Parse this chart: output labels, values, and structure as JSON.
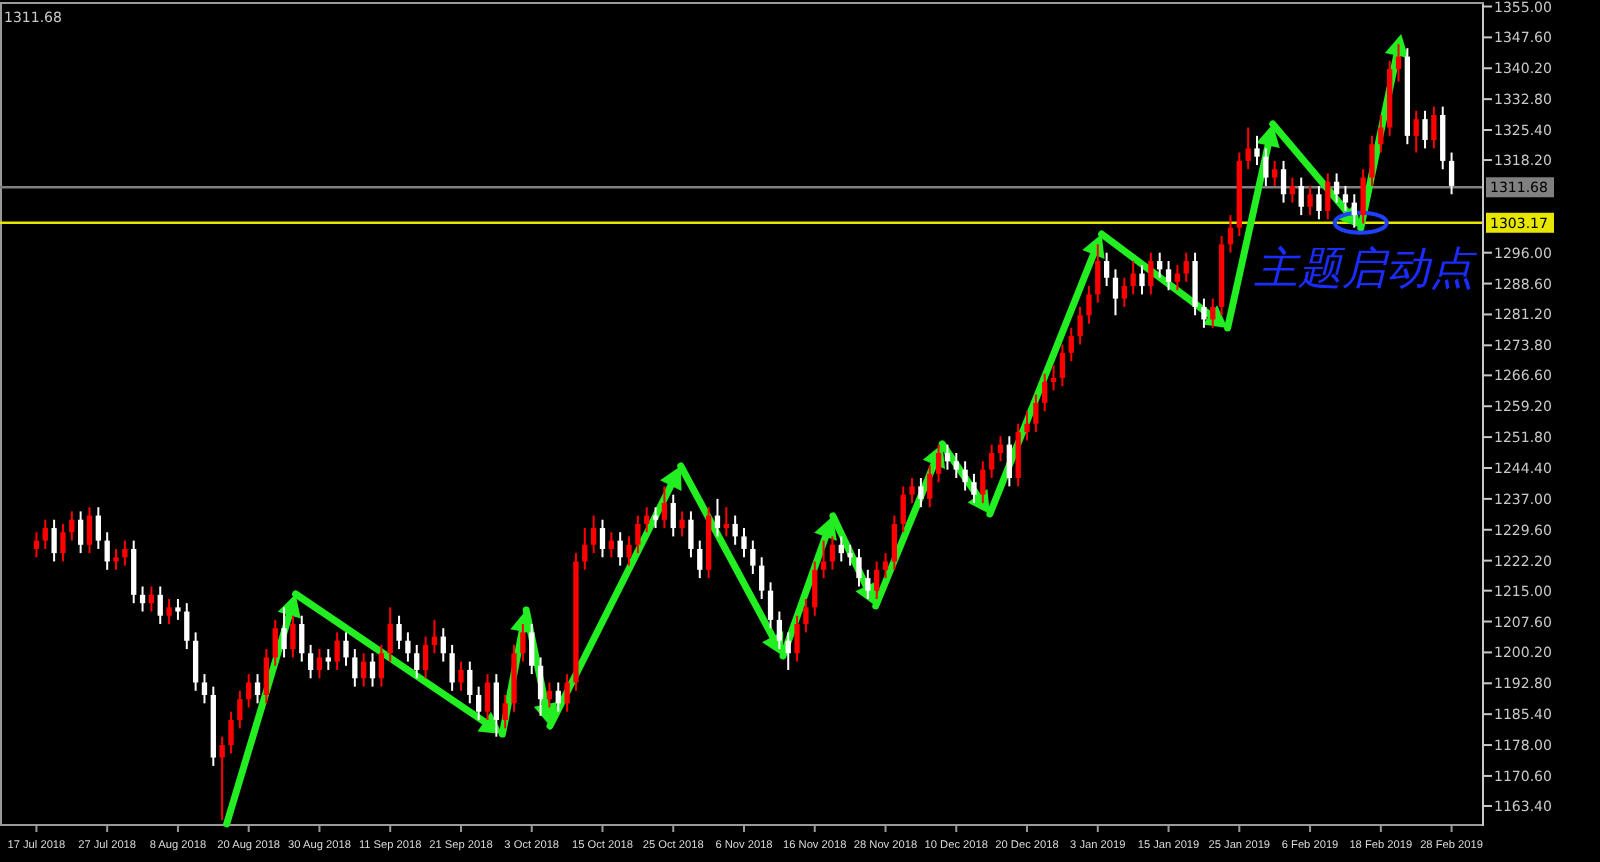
{
  "chart_data": {
    "type": "candlestick",
    "categories": [
      "17 Jul 2018",
      null,
      null,
      null,
      null,
      null,
      null,
      null,
      "27 Jul 2018",
      null,
      null,
      null,
      null,
      null,
      null,
      null,
      "8 Aug 2018",
      null,
      null,
      null,
      null,
      null,
      null,
      null,
      "20 Aug 2018",
      null,
      null,
      null,
      null,
      null,
      null,
      null,
      "30 Aug 2018",
      null,
      null,
      null,
      null,
      null,
      null,
      null,
      "11 Sep 2018",
      null,
      null,
      null,
      null,
      null,
      null,
      null,
      "21 Sep 2018",
      null,
      null,
      null,
      null,
      null,
      null,
      null,
      "3 Oct 2018",
      null,
      null,
      null,
      null,
      null,
      null,
      null,
      "15 Oct 2018",
      null,
      null,
      null,
      null,
      null,
      null,
      null,
      "25 Oct 2018",
      null,
      null,
      null,
      null,
      null,
      null,
      null,
      "6 Nov 2018",
      null,
      null,
      null,
      null,
      null,
      null,
      null,
      "16 Nov 2018",
      null,
      null,
      null,
      null,
      null,
      null,
      null,
      "28 Nov 2018",
      null,
      null,
      null,
      null,
      null,
      null,
      null,
      "10 Dec 2018",
      null,
      null,
      null,
      null,
      null,
      null,
      null,
      "20 Dec 2018",
      null,
      null,
      null,
      null,
      null,
      null,
      null,
      "3 Jan 2019",
      null,
      null,
      null,
      null,
      null,
      null,
      null,
      "15 Jan 2019",
      null,
      null,
      null,
      null,
      null,
      null,
      null,
      "25 Jan 2019",
      null,
      null,
      null,
      null,
      null,
      null,
      null,
      "6 Feb 2019",
      null,
      null,
      null,
      null,
      null,
      null,
      null,
      "18 Feb 2019",
      null,
      null,
      null,
      null,
      null,
      null,
      null,
      "28 Feb 2019"
    ],
    "ohlc": [
      [
        1225,
        1229,
        1223,
        1227
      ],
      [
        1227,
        1232,
        1225,
        1230
      ],
      [
        1230,
        1232,
        1222,
        1224
      ],
      [
        1224,
        1231,
        1222,
        1229
      ],
      [
        1229,
        1234,
        1227,
        1232
      ],
      [
        1232,
        1234,
        1224,
        1226
      ],
      [
        1226,
        1235,
        1224,
        1233
      ],
      [
        1233,
        1235,
        1225,
        1227
      ],
      [
        1227,
        1229,
        1220,
        1222
      ],
      [
        1222,
        1225,
        1220,
        1223
      ],
      [
        1223,
        1227,
        1221,
        1225
      ],
      [
        1225,
        1227,
        1212,
        1214
      ],
      [
        1214,
        1216,
        1210,
        1212
      ],
      [
        1212,
        1216,
        1210,
        1214
      ],
      [
        1214,
        1216,
        1207,
        1209
      ],
      [
        1209,
        1213,
        1207,
        1211
      ],
      [
        1211,
        1213,
        1208,
        1210
      ],
      [
        1210,
        1212,
        1201,
        1203
      ],
      [
        1203,
        1205,
        1191,
        1193
      ],
      [
        1193,
        1195,
        1188,
        1190
      ],
      [
        1190,
        1192,
        1173,
        1175
      ],
      [
        1175,
        1180,
        1160,
        1178
      ],
      [
        1178,
        1186,
        1176,
        1184
      ],
      [
        1184,
        1191,
        1182,
        1189
      ],
      [
        1189,
        1195,
        1187,
        1193
      ],
      [
        1193,
        1195,
        1188,
        1190
      ],
      [
        1190,
        1201,
        1188,
        1199
      ],
      [
        1199,
        1208,
        1197,
        1206
      ],
      [
        1206,
        1211,
        1199,
        1201
      ],
      [
        1201,
        1209,
        1199,
        1207
      ],
      [
        1207,
        1209,
        1198,
        1200
      ],
      [
        1200,
        1202,
        1194,
        1196
      ],
      [
        1196,
        1201,
        1194,
        1199
      ],
      [
        1199,
        1201,
        1196,
        1198
      ],
      [
        1198,
        1205,
        1196,
        1203
      ],
      [
        1203,
        1205,
        1197,
        1199
      ],
      [
        1199,
        1201,
        1192,
        1194
      ],
      [
        1194,
        1200,
        1192,
        1198
      ],
      [
        1198,
        1200,
        1192,
        1194
      ],
      [
        1194,
        1202,
        1192,
        1200
      ],
      [
        1200,
        1211,
        1198,
        1207
      ],
      [
        1207,
        1209,
        1201,
        1203
      ],
      [
        1203,
        1205,
        1198,
        1200
      ],
      [
        1200,
        1202,
        1194,
        1196
      ],
      [
        1196,
        1204,
        1194,
        1202
      ],
      [
        1202,
        1208,
        1200,
        1204
      ],
      [
        1204,
        1206,
        1198,
        1200
      ],
      [
        1200,
        1202,
        1191,
        1193
      ],
      [
        1193,
        1198,
        1191,
        1196
      ],
      [
        1196,
        1198,
        1188,
        1190
      ],
      [
        1190,
        1192,
        1184,
        1186
      ],
      [
        1186,
        1195,
        1184,
        1193
      ],
      [
        1193,
        1195,
        1180,
        1184
      ],
      [
        1184,
        1190,
        1182,
        1188
      ],
      [
        1188,
        1202,
        1186,
        1200
      ],
      [
        1200,
        1207,
        1198,
        1205
      ],
      [
        1205,
        1207,
        1195,
        1197
      ],
      [
        1197,
        1199,
        1185,
        1189
      ],
      [
        1189,
        1193,
        1187,
        1191
      ],
      [
        1191,
        1193,
        1186,
        1188
      ],
      [
        1188,
        1195,
        1186,
        1193
      ],
      [
        1193,
        1224,
        1191,
        1222
      ],
      [
        1222,
        1230,
        1220,
        1226
      ],
      [
        1226,
        1233,
        1224,
        1230
      ],
      [
        1230,
        1232,
        1223,
        1225
      ],
      [
        1225,
        1229,
        1223,
        1227
      ],
      [
        1227,
        1229,
        1221,
        1223
      ],
      [
        1223,
        1228,
        1221,
        1226
      ],
      [
        1226,
        1233,
        1224,
        1231
      ],
      [
        1231,
        1235,
        1229,
        1233
      ],
      [
        1233,
        1235,
        1230,
        1232
      ],
      [
        1232,
        1240,
        1230,
        1236
      ],
      [
        1236,
        1238,
        1228,
        1230
      ],
      [
        1230,
        1234,
        1228,
        1232
      ],
      [
        1232,
        1234,
        1223,
        1225
      ],
      [
        1225,
        1227,
        1218,
        1220
      ],
      [
        1220,
        1235,
        1218,
        1233
      ],
      [
        1233,
        1237,
        1228,
        1230
      ],
      [
        1230,
        1235,
        1228,
        1231
      ],
      [
        1231,
        1233,
        1226,
        1228
      ],
      [
        1228,
        1230,
        1223,
        1225
      ],
      [
        1225,
        1227,
        1219,
        1221
      ],
      [
        1221,
        1223,
        1213,
        1215
      ],
      [
        1215,
        1217,
        1206,
        1208
      ],
      [
        1208,
        1210,
        1201,
        1203
      ],
      [
        1203,
        1205,
        1196,
        1200
      ],
      [
        1200,
        1209,
        1198,
        1207
      ],
      [
        1207,
        1213,
        1205,
        1211
      ],
      [
        1211,
        1222,
        1209,
        1220
      ],
      [
        1220,
        1227,
        1218,
        1222
      ],
      [
        1222,
        1228,
        1220,
        1226
      ],
      [
        1226,
        1228,
        1222,
        1224
      ],
      [
        1224,
        1226,
        1221,
        1223
      ],
      [
        1223,
        1225,
        1216,
        1218
      ],
      [
        1218,
        1220,
        1213,
        1215
      ],
      [
        1215,
        1222,
        1213,
        1220
      ],
      [
        1220,
        1224,
        1218,
        1222
      ],
      [
        1222,
        1233,
        1220,
        1231
      ],
      [
        1231,
        1240,
        1229,
        1238
      ],
      [
        1238,
        1242,
        1236,
        1240
      ],
      [
        1240,
        1242,
        1235,
        1237
      ],
      [
        1237,
        1245,
        1235,
        1243
      ],
      [
        1243,
        1250,
        1241,
        1248
      ],
      [
        1248,
        1250,
        1244,
        1246
      ],
      [
        1246,
        1248,
        1242,
        1244
      ],
      [
        1244,
        1246,
        1239,
        1241
      ],
      [
        1241,
        1243,
        1236,
        1238
      ],
      [
        1238,
        1246,
        1236,
        1244
      ],
      [
        1244,
        1250,
        1242,
        1248
      ],
      [
        1248,
        1252,
        1246,
        1250
      ],
      [
        1250,
        1252,
        1240,
        1242
      ],
      [
        1242,
        1255,
        1240,
        1253
      ],
      [
        1253,
        1258,
        1251,
        1255
      ],
      [
        1255,
        1262,
        1253,
        1260
      ],
      [
        1260,
        1267,
        1258,
        1265
      ],
      [
        1265,
        1269,
        1263,
        1266
      ],
      [
        1266,
        1274,
        1264,
        1272
      ],
      [
        1272,
        1278,
        1270,
        1276
      ],
      [
        1276,
        1283,
        1274,
        1281
      ],
      [
        1281,
        1288,
        1279,
        1286
      ],
      [
        1286,
        1298,
        1284,
        1294
      ],
      [
        1294,
        1296,
        1288,
        1290
      ],
      [
        1290,
        1292,
        1281,
        1285
      ],
      [
        1285,
        1290,
        1283,
        1288
      ],
      [
        1288,
        1294,
        1286,
        1291
      ],
      [
        1291,
        1293,
        1286,
        1288
      ],
      [
        1288,
        1296,
        1286,
        1294
      ],
      [
        1294,
        1296,
        1290,
        1292
      ],
      [
        1292,
        1294,
        1287,
        1289
      ],
      [
        1289,
        1293,
        1287,
        1291
      ],
      [
        1291,
        1296,
        1289,
        1294
      ],
      [
        1294,
        1296,
        1281,
        1283
      ],
      [
        1283,
        1285,
        1278,
        1280
      ],
      [
        1280,
        1285,
        1278,
        1283
      ],
      [
        1283,
        1300,
        1281,
        1298
      ],
      [
        1298,
        1305,
        1296,
        1302
      ],
      [
        1302,
        1320,
        1300,
        1318
      ],
      [
        1318,
        1326,
        1316,
        1321
      ],
      [
        1321,
        1324,
        1317,
        1319
      ],
      [
        1319,
        1321,
        1312,
        1314
      ],
      [
        1314,
        1318,
        1312,
        1316
      ],
      [
        1316,
        1318,
        1308,
        1310
      ],
      [
        1310,
        1314,
        1308,
        1312
      ],
      [
        1312,
        1314,
        1305,
        1307
      ],
      [
        1307,
        1312,
        1305,
        1310
      ],
      [
        1310,
        1312,
        1304,
        1306
      ],
      [
        1306,
        1315,
        1304,
        1313
      ],
      [
        1313,
        1315,
        1308,
        1310
      ],
      [
        1310,
        1312,
        1306,
        1308
      ],
      [
        1308,
        1310,
        1302,
        1305
      ],
      [
        1305,
        1316,
        1303,
        1314
      ],
      [
        1314,
        1324,
        1312,
        1322
      ],
      [
        1322,
        1329,
        1320,
        1326
      ],
      [
        1326,
        1342,
        1324,
        1340
      ],
      [
        1340,
        1346,
        1337,
        1343
      ],
      [
        1343,
        1345,
        1322,
        1324
      ],
      [
        1324,
        1330,
        1320,
        1328
      ],
      [
        1328,
        1330,
        1321,
        1323
      ],
      [
        1323,
        1331,
        1321,
        1329
      ],
      [
        1329,
        1331,
        1316,
        1318
      ],
      [
        1318,
        1320,
        1310,
        1312
      ]
    ],
    "colors": [
      "#ff0000",
      "#ff0000",
      "#ffffff",
      "#ff0000",
      "#ff0000",
      "#ffffff",
      "#ff0000",
      "#ffffff",
      "#ffffff",
      "#ff0000",
      "#ff0000",
      "#ffffff",
      "#ffffff",
      "#ff0000",
      "#ffffff",
      "#ff0000",
      "#ffffff",
      "#ffffff",
      "#ffffff",
      "#ffffff",
      "#ffffff",
      "#ff0000",
      "#ff0000",
      "#ff0000",
      "#ff0000",
      "#ffffff",
      "#ff0000",
      "#ff0000",
      "#ffffff",
      "#ff0000",
      "#ffffff",
      "#ffffff",
      "#ff0000",
      "#ffffff",
      "#ff0000",
      "#ffffff",
      "#ffffff",
      "#ff0000",
      "#ffffff",
      "#ff0000",
      "#ff0000",
      "#ffffff",
      "#ffffff",
      "#ffffff",
      "#ff0000",
      "#ff0000",
      "#ffffff",
      "#ffffff",
      "#ff0000",
      "#ffffff",
      "#ffffff",
      "#ff0000",
      "#ffffff",
      "#ff0000",
      "#ff0000",
      "#ff0000",
      "#ffffff",
      "#ffffff",
      "#ff0000",
      "#ffffff",
      "#ff0000",
      "#ff0000",
      "#ff0000",
      "#ff0000",
      "#ffffff",
      "#ff0000",
      "#ffffff",
      "#ff0000",
      "#ff0000",
      "#ff0000",
      "#ffffff",
      "#ff0000",
      "#ffffff",
      "#ff0000",
      "#ffffff",
      "#ffffff",
      "#ff0000",
      "#ffffff",
      "#ff0000",
      "#ffffff",
      "#ffffff",
      "#ffffff",
      "#ffffff",
      "#ffffff",
      "#ffffff",
      "#ffffff",
      "#ff0000",
      "#ff0000",
      "#ff0000",
      "#ff0000",
      "#ff0000",
      "#ffffff",
      "#ffffff",
      "#ffffff",
      "#ffffff",
      "#ff0000",
      "#ff0000",
      "#ff0000",
      "#ff0000",
      "#ff0000",
      "#ffffff",
      "#ff0000",
      "#ff0000",
      "#ffffff",
      "#ffffff",
      "#ffffff",
      "#ffffff",
      "#ff0000",
      "#ff0000",
      "#ff0000",
      "#ffffff",
      "#ff0000",
      "#ff0000",
      "#ff0000",
      "#ff0000",
      "#ff0000",
      "#ff0000",
      "#ff0000",
      "#ff0000",
      "#ff0000",
      "#ff0000",
      "#ffffff",
      "#ffffff",
      "#ff0000",
      "#ff0000",
      "#ffffff",
      "#ff0000",
      "#ffffff",
      "#ffffff",
      "#ff0000",
      "#ff0000",
      "#ffffff",
      "#ffffff",
      "#ff0000",
      "#ff0000",
      "#ff0000",
      "#ff0000",
      "#ff0000",
      "#ffffff",
      "#ffffff",
      "#ff0000",
      "#ffffff",
      "#ff0000",
      "#ffffff",
      "#ff0000",
      "#ffffff",
      "#ff0000",
      "#ffffff",
      "#ffffff",
      "#ffffff",
      "#ff0000",
      "#ff0000",
      "#ff0000",
      "#ff0000",
      "#ff0000",
      "#ffffff",
      "#ff0000",
      "#ffffff",
      "#ff0000",
      "#ffffff",
      "#ffffff"
    ],
    "ylim": [
      1158.6,
      1355.6
    ],
    "yticks": [
      {
        "value": 1355,
        "label": "1355.00"
      },
      {
        "value": 1347.6,
        "label": "1347.60"
      },
      {
        "value": 1340.2,
        "label": "1340.20"
      },
      {
        "value": 1332.8,
        "label": "1332.80"
      },
      {
        "value": 1325.4,
        "label": "1325.40"
      },
      {
        "value": 1318.2,
        "label": "1318.20"
      },
      {
        "value": 1296,
        "label": "1296.00"
      },
      {
        "value": 1288.6,
        "label": "1288.60"
      },
      {
        "value": 1281.2,
        "label": "1281.20"
      },
      {
        "value": 1273.8,
        "label": "1273.80"
      },
      {
        "value": 1266.6,
        "label": "1266.60"
      },
      {
        "value": 1259.2,
        "label": "1259.20"
      },
      {
        "value": 1251.8,
        "label": "1251.80"
      },
      {
        "value": 1244.4,
        "label": "1244.40"
      },
      {
        "value": 1237,
        "label": "1237.00"
      },
      {
        "value": 1229.6,
        "label": "1229.60"
      },
      {
        "value": 1222.2,
        "label": "1222.20"
      },
      {
        "value": 1215,
        "label": "1215.00"
      },
      {
        "value": 1207.6,
        "label": "1207.60"
      },
      {
        "value": 1200.2,
        "label": "1200.20"
      },
      {
        "value": 1192.8,
        "label": "1192.80"
      },
      {
        "value": 1185.4,
        "label": "1185.40"
      },
      {
        "value": 1178,
        "label": "1178.00"
      },
      {
        "value": 1170.6,
        "label": "1170.60"
      },
      {
        "value": 1163.4,
        "label": "1163.40"
      }
    ],
    "ref_lines": [
      {
        "axis": "y",
        "value": 1311.68,
        "label": "1311.68",
        "color": "#808080"
      },
      {
        "axis": "y",
        "value": 1303.17,
        "label": "1303.17",
        "color": "#e6e600"
      }
    ],
    "annotations": [
      "1311.68",
      {
        "text": "主题启动点",
        "y": 1303.17
      }
    ],
    "grid": false
  }
}
